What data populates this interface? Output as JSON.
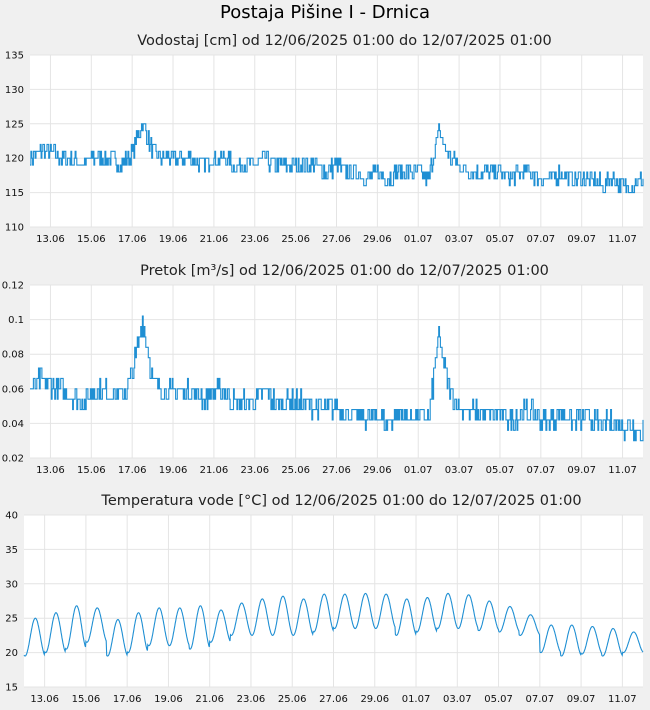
{
  "title": "Postaja Pišine I - Drnica",
  "colors": {
    "line": "#1f8fd3",
    "grid": "#e4e4e4",
    "plot_bg": "#ffffff",
    "page_bg": "#f0f0f0"
  },
  "chart_data": [
    {
      "type": "line",
      "title": "Vodostaj [cm] od 12/06/2025 01:00 do 12/07/2025 01:00",
      "x_tick_labels": [
        "13.06",
        "15.06",
        "17.06",
        "19.06",
        "21.06",
        "23.06",
        "25.06",
        "27.06",
        "29.06",
        "01.07",
        "03.07",
        "05.07",
        "07.07",
        "09.07",
        "11.07"
      ],
      "y_ticks": [
        "110",
        "115",
        "120",
        "125",
        "130",
        "135"
      ],
      "ylim": [
        110,
        135
      ],
      "xlim_days": [
        0,
        30
      ],
      "grid": true,
      "series": [
        {
          "x_days": [
            0,
            0.5,
            1,
            1.5,
            2,
            2.5,
            3,
            3.5,
            4,
            4.5,
            5,
            5.5,
            6,
            6.5,
            7,
            7.5,
            8,
            8.5,
            9,
            9.5,
            10,
            10.5,
            11,
            11.5,
            12,
            12.5,
            13,
            13.5,
            14,
            14.5,
            15,
            15.5,
            16,
            16.5,
            17,
            17.5,
            18,
            18.5,
            19,
            19.5,
            20,
            20.5,
            21,
            21.5,
            22,
            22.5,
            23,
            23.5,
            24,
            24.5,
            25,
            25.5,
            26,
            26.5,
            27,
            27.5,
            28,
            28.5,
            29,
            29.5,
            30
          ],
          "values": [
            120,
            121,
            121,
            120,
            120,
            119,
            120,
            120,
            120,
            119,
            121,
            125,
            121,
            120,
            120,
            120,
            120,
            119,
            120,
            120,
            119,
            119,
            119,
            120,
            119,
            119,
            119,
            119,
            119,
            118,
            119,
            118,
            118,
            117,
            118,
            117,
            118,
            118,
            118,
            117,
            124,
            120,
            119,
            118,
            118,
            118,
            118,
            117,
            118,
            118,
            117,
            117,
            118,
            117,
            117,
            117,
            116,
            117,
            116,
            116,
            117
          ]
        }
      ]
    },
    {
      "type": "line",
      "title": "Pretok [m³/s] od 12/06/2025 01:00 do 12/07/2025 01:00",
      "x_tick_labels": [
        "13.06",
        "15.06",
        "17.06",
        "19.06",
        "21.06",
        "23.06",
        "25.06",
        "27.06",
        "29.06",
        "01.07",
        "03.07",
        "05.07",
        "07.07",
        "09.07",
        "11.07"
      ],
      "y_ticks": [
        "0.02",
        "0.04",
        "0.06",
        "0.08",
        "0.1",
        "0.12"
      ],
      "ylim": [
        0.02,
        0.12
      ],
      "xlim_days": [
        0,
        30
      ],
      "grid": true,
      "series": [
        {
          "x_days": [
            0,
            0.5,
            1,
            1.5,
            2,
            2.5,
            3,
            3.5,
            4,
            4.5,
            5,
            5.5,
            6,
            6.5,
            7,
            7.5,
            8,
            8.5,
            9,
            9.5,
            10,
            10.5,
            11,
            11.5,
            12,
            12.5,
            13,
            13.5,
            14,
            14.5,
            15,
            15.5,
            16,
            16.5,
            17,
            17.5,
            18,
            18.5,
            19,
            19.5,
            20,
            20.5,
            21,
            21.5,
            22,
            22.5,
            23,
            23.5,
            24,
            24.5,
            25,
            25.5,
            26,
            26.5,
            27,
            27.5,
            28,
            28.5,
            29,
            29.5,
            30
          ],
          "values": [
            0.059,
            0.065,
            0.062,
            0.06,
            0.055,
            0.052,
            0.058,
            0.06,
            0.058,
            0.055,
            0.068,
            0.1,
            0.065,
            0.058,
            0.058,
            0.058,
            0.058,
            0.055,
            0.058,
            0.058,
            0.052,
            0.052,
            0.052,
            0.058,
            0.052,
            0.052,
            0.052,
            0.052,
            0.05,
            0.048,
            0.05,
            0.045,
            0.045,
            0.042,
            0.046,
            0.04,
            0.045,
            0.045,
            0.045,
            0.042,
            0.09,
            0.06,
            0.05,
            0.046,
            0.046,
            0.046,
            0.046,
            0.042,
            0.046,
            0.046,
            0.042,
            0.042,
            0.046,
            0.042,
            0.042,
            0.042,
            0.038,
            0.042,
            0.038,
            0.038,
            0.036
          ]
        }
      ]
    },
    {
      "type": "line",
      "title": "Temperatura vode [°C] od 12/06/2025 01:00 do 12/07/2025 01:00",
      "x_tick_labels": [
        "13.06",
        "15.06",
        "17.06",
        "19.06",
        "21.06",
        "23.06",
        "25.06",
        "27.06",
        "29.06",
        "01.07",
        "03.07",
        "05.07",
        "07.07",
        "09.07",
        "11.07"
      ],
      "y_ticks": [
        "15",
        "20",
        "25",
        "30",
        "35",
        "40"
      ],
      "ylim": [
        15,
        40
      ],
      "xlim_days": [
        0,
        30
      ],
      "grid": true,
      "series": [
        {
          "daily_peaks_c": [
            25,
            25.8,
            26.8,
            26.5,
            24.8,
            25.8,
            26.5,
            26.5,
            26.8,
            26.2,
            27.2,
            27.8,
            28.2,
            27.8,
            28.5,
            28.5,
            28.6,
            28.5,
            27.8,
            28,
            28.6,
            28.4,
            27.5,
            26.7,
            25.5,
            24,
            24,
            23.8,
            23.5,
            23
          ],
          "daily_minima_c": [
            19.5,
            20,
            20.5,
            21.5,
            19.5,
            20,
            21,
            21,
            20.5,
            21.5,
            22.5,
            22.5,
            22.5,
            22.5,
            23,
            23.5,
            23.5,
            23.5,
            22.5,
            23,
            23.5,
            23.5,
            23.2,
            23,
            22.5,
            20,
            19.5,
            19.8,
            19.5,
            20
          ]
        }
      ]
    }
  ]
}
